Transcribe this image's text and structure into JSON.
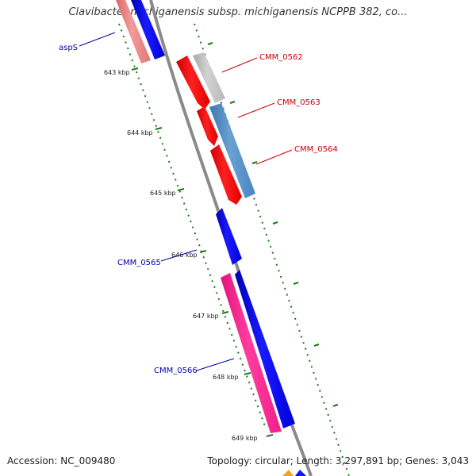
{
  "title": "Clavibacter michiganensis subsp. michiganensis NCPPB 382, co...",
  "footer": {
    "accession": "Accession: NC_009480",
    "summary": "Topology: circular; Length: 3,297,891 bp; Genes: 3,043"
  },
  "scale": {
    "unit": "kbp",
    "ticks": [
      "643 kbp",
      "644 kbp",
      "645 kbp",
      "646 kbp",
      "647 kbp",
      "648 kbp",
      "649 kbp"
    ]
  },
  "genes": [
    {
      "name": "aspS",
      "strand": "reverse",
      "label_color": "#0000aa"
    },
    {
      "name": "CMM_0562",
      "strand": "forward",
      "label_color": "#cc0000"
    },
    {
      "name": "CMM_0563",
      "strand": "forward",
      "label_color": "#cc0000"
    },
    {
      "name": "CMM_0564",
      "strand": "forward",
      "label_color": "#cc0000"
    },
    {
      "name": "CMM_0565",
      "strand": "reverse",
      "label_color": "#0000aa"
    },
    {
      "name": "CMM_0566",
      "strand": "reverse",
      "label_color": "#0000aa"
    }
  ],
  "colors": {
    "backbone": "#8a8a8a",
    "forward_gene": "#ff0000",
    "reverse_gene": "#0000ee",
    "rna_feature": "#ff2a8f",
    "aux_feature_gray": "#bbbbbb",
    "aux_feature_blue": "#4a86c0",
    "aux_feature_salmon": "#e87b7b",
    "scale_tick": "#1a7a1a"
  }
}
